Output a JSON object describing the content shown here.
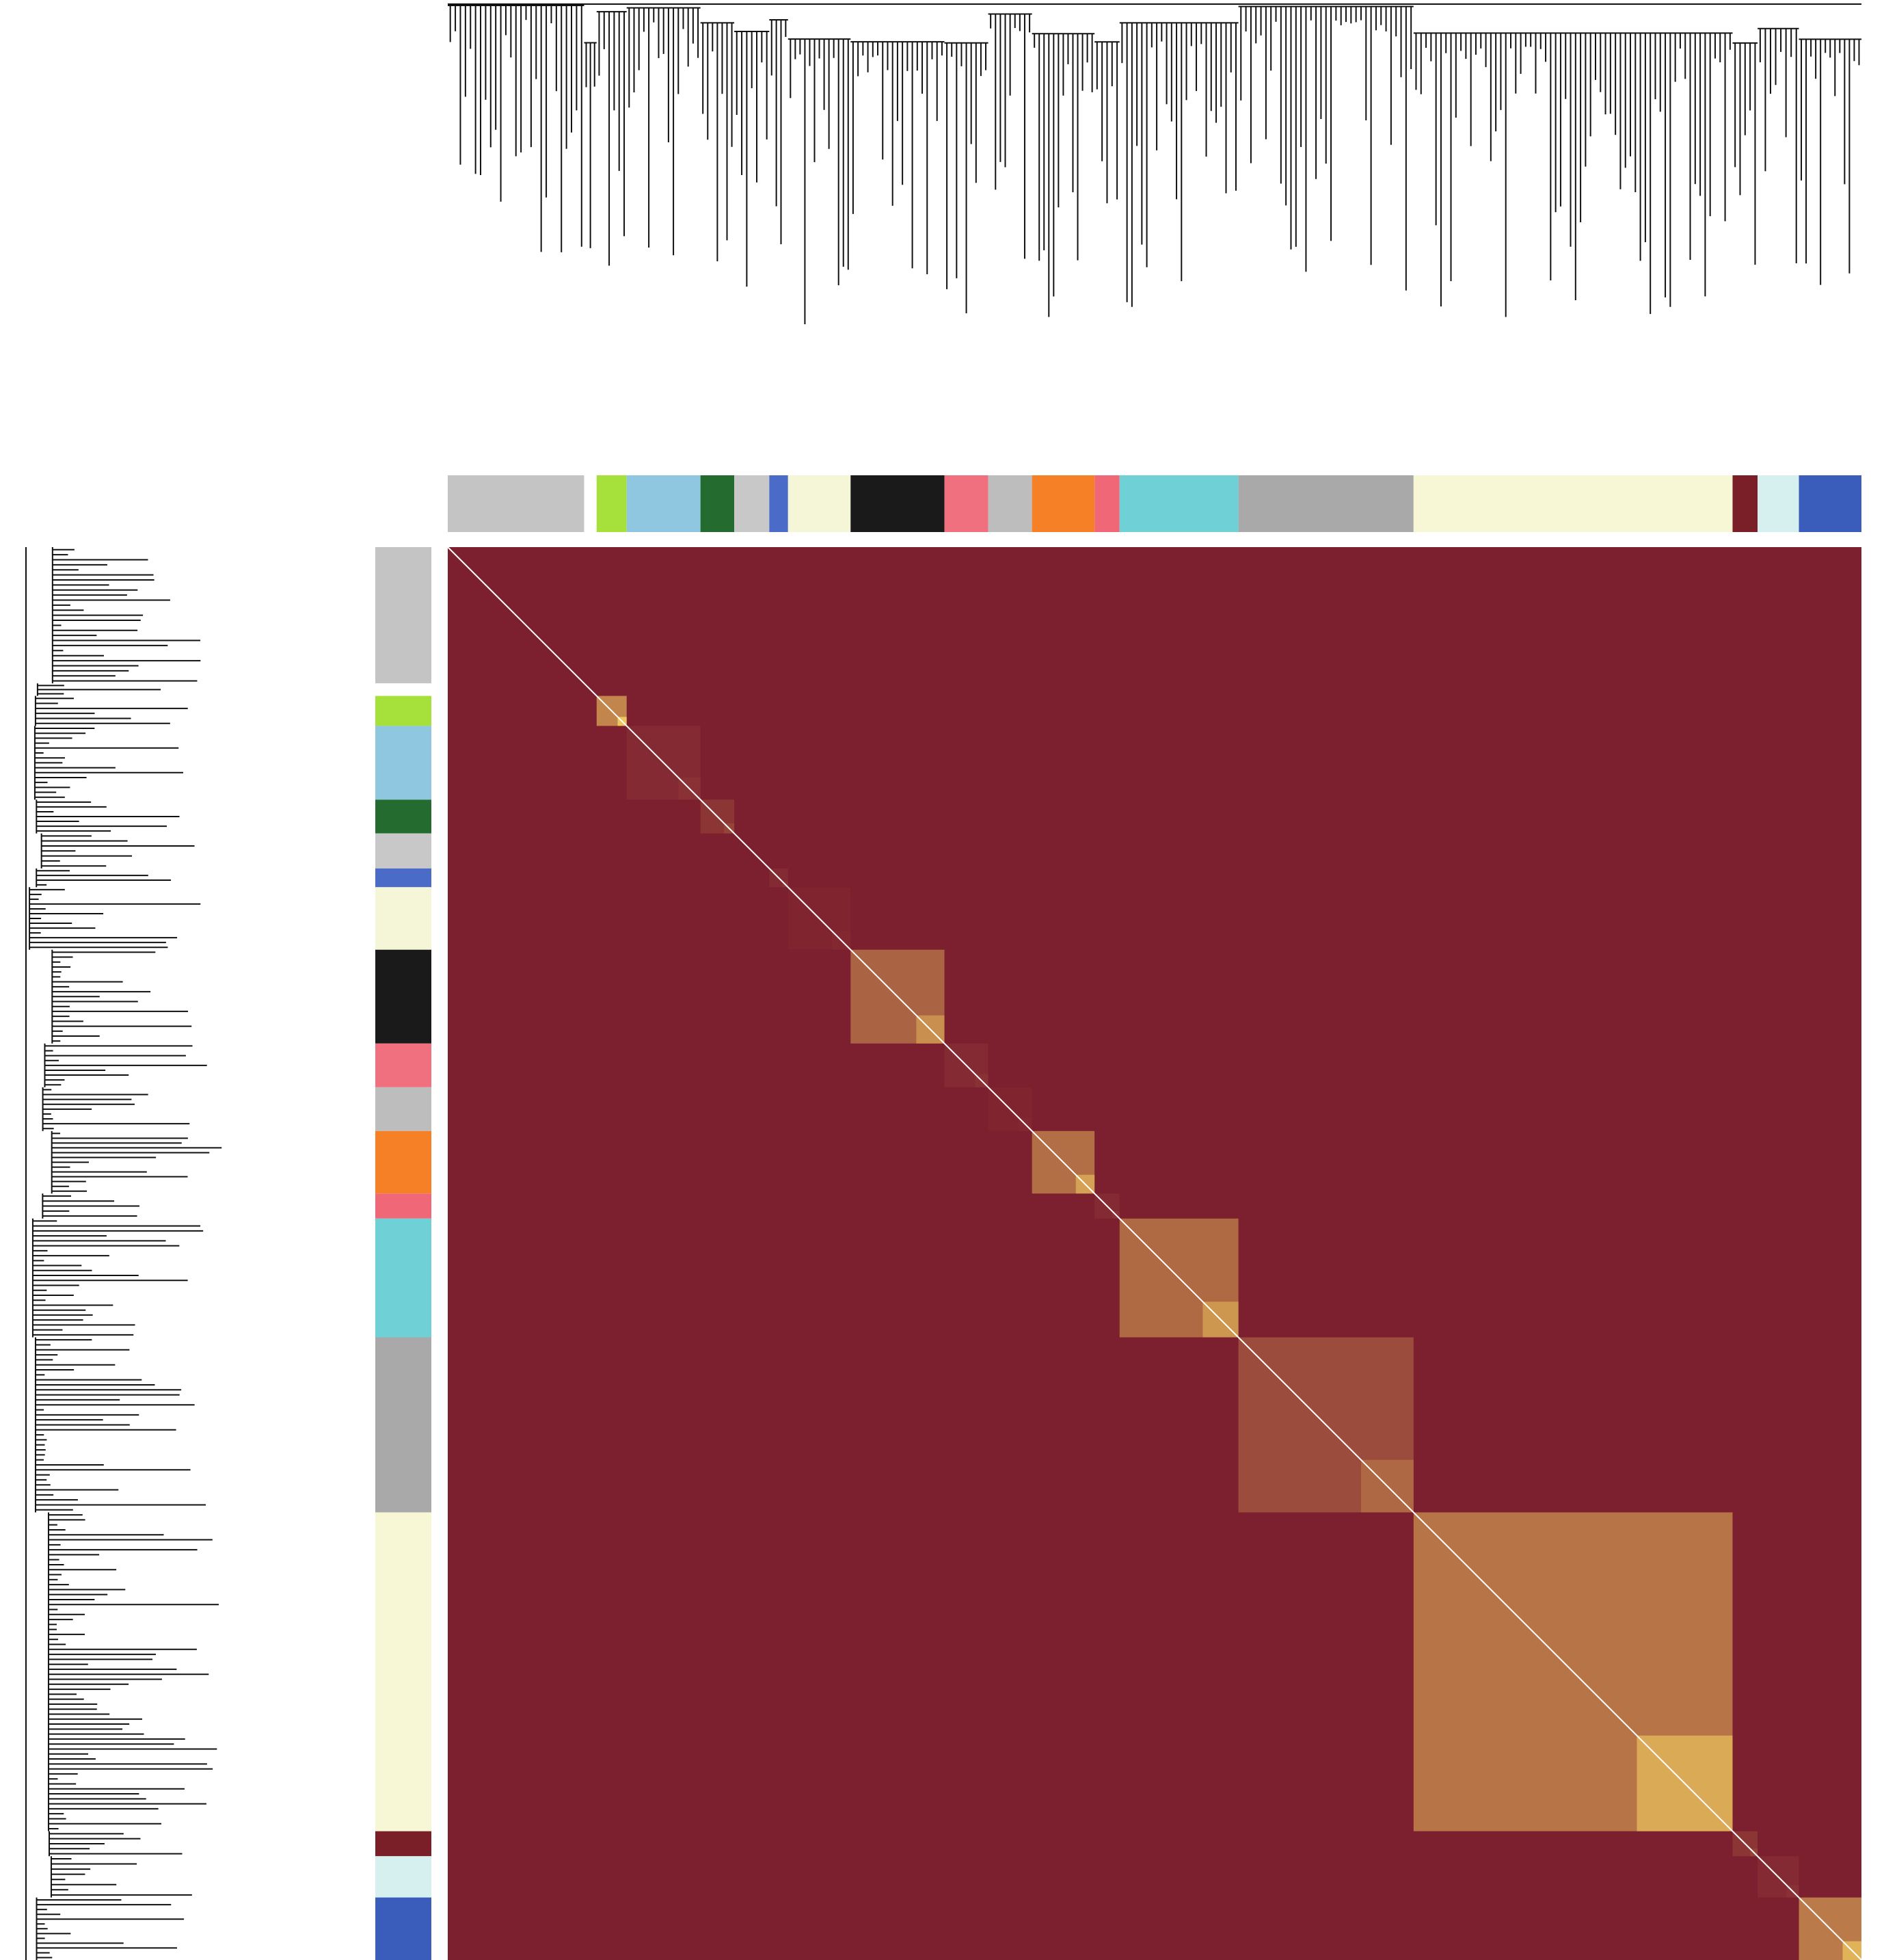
{
  "chart_data": {
    "type": "heatmap",
    "low_color": "#7c1f2e",
    "high_color": "#ffe066",
    "diagonal_color": "#ffffff",
    "modules": [
      {
        "color": "#c4c4c4",
        "size": 109,
        "tom": 0
      },
      {
        "color": "#ffffff",
        "size": 10,
        "tom": 0
      },
      {
        "color": "#a6e03a",
        "size": 24,
        "tom": 0.9
      },
      {
        "color": "#8fc7e0",
        "size": 59,
        "tom": 0.1
      },
      {
        "color": "#236b2f",
        "size": 27,
        "tom": 0.2
      },
      {
        "color": "#c8c8c8",
        "size": 28,
        "tom": 0
      },
      {
        "color": "#4a6cc8",
        "size": 15,
        "tom": 0.1
      },
      {
        "color": "#f5f5d8",
        "size": 50,
        "tom": 0.05
      },
      {
        "color": "#1a1a1a",
        "size": 75,
        "tom": 0.6
      },
      {
        "color": "#f07080",
        "size": 35,
        "tom": 0.1
      },
      {
        "color": "#bdbdbd",
        "size": 35,
        "tom": 0.05
      },
      {
        "color": "#f58025",
        "size": 50,
        "tom": 0.7
      },
      {
        "color": "#f06878",
        "size": 20,
        "tom": 0.1
      },
      {
        "color": "#6fd0d6",
        "size": 95,
        "tom": 0.65
      },
      {
        "color": "#a9a9a9",
        "size": 140,
        "tom": 0.4
      },
      {
        "color": "#f7f7d6",
        "size": 255,
        "tom": 0.75
      },
      {
        "color": "#7a1f28",
        "size": 20,
        "tom": 0.2
      },
      {
        "color": "#d6f0f0",
        "size": 33,
        "tom": 0.1
      },
      {
        "color": "#3a5dbb",
        "size": 50,
        "tom": 0.8
      }
    ]
  }
}
